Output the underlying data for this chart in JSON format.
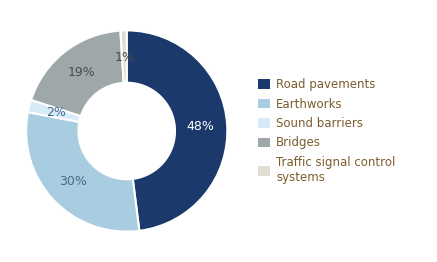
{
  "labels": [
    "Road pavements",
    "Earthworks",
    "Sound barriers",
    "Bridges",
    "Traffic signal control\nsystems"
  ],
  "values": [
    48,
    30,
    2,
    19,
    1
  ],
  "colors": [
    "#1b3a6b",
    "#a8cce0",
    "#d6eaf8",
    "#9ea8a8",
    "#e0ddd5"
  ],
  "pct_labels": [
    "48%",
    "30%",
    "2%",
    "19%",
    "1%"
  ],
  "pct_colors": [
    "white",
    "#4a6a8a",
    "#4a6a8a",
    "#4a4a4a",
    "#4a4a4a"
  ],
  "legend_labels": [
    "Road pavements",
    "Earthworks",
    "Sound barriers",
    "Bridges",
    "Traffic signal control\nsystems"
  ],
  "legend_colors": [
    "#1b3a6b",
    "#a8cce0",
    "#d6eaf8",
    "#9ea8a8",
    "#e0ddd5"
  ],
  "background_color": "#ffffff",
  "legend_text_color": "#7b5c2e",
  "pct_fontsize": 9,
  "legend_fontsize": 8.5
}
